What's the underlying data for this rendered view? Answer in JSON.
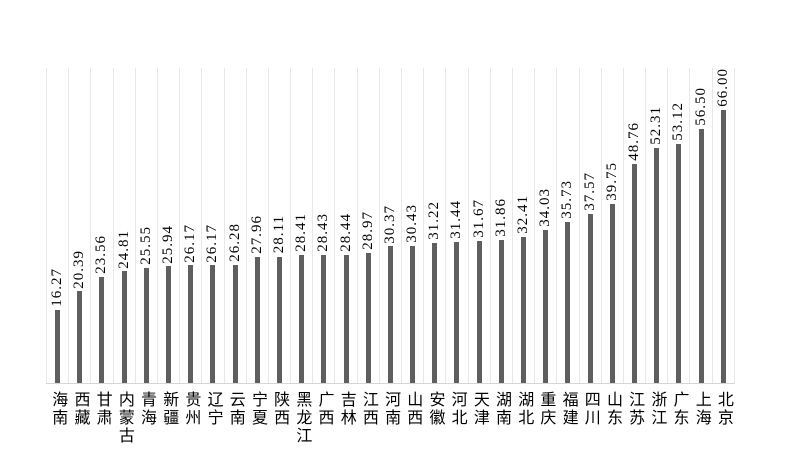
{
  "chart_data": {
    "type": "bar",
    "title": "",
    "xlabel": "",
    "ylabel": "",
    "ylim": [
      0,
      70
    ],
    "legend_position": "none",
    "grid": "vertical-category-gridlines-only",
    "orientation": "vertical",
    "bar_color": "#5f5f5f",
    "gridline_color": "#e8e8e8",
    "axis_line_color": "#d6d6d6",
    "label_color": "#000000",
    "value_label_rotation": "90-degrees-bottom-to-top",
    "category_label_orientation": "vertical-stacked-characters",
    "categories": [
      "海南",
      "西藏",
      "甘肃",
      "内蒙古",
      "青海",
      "新疆",
      "贵州",
      "辽宁",
      "云南",
      "宁夏",
      "陕西",
      "黑龙江",
      "广西",
      "吉林",
      "江西",
      "河南",
      "山西",
      "安徽",
      "河北",
      "天津",
      "湖南",
      "湖北",
      "重庆",
      "福建",
      "四川",
      "山东",
      "江苏",
      "浙江",
      "广东",
      "上海",
      "北京"
    ],
    "values": [
      16.27,
      20.39,
      23.56,
      24.81,
      25.55,
      25.94,
      26.17,
      26.17,
      26.28,
      27.96,
      28.11,
      28.41,
      28.43,
      28.44,
      28.97,
      30.37,
      30.43,
      31.22,
      31.44,
      31.67,
      31.86,
      32.41,
      34.03,
      35.73,
      37.57,
      39.75,
      48.76,
      52.31,
      53.12,
      56.5,
      66.0
    ],
    "value_labels": [
      "16.27",
      "20.39",
      "23.56",
      "24.81",
      "25.55",
      "25.94",
      "26.17",
      "26.17",
      "26.28",
      "27.96",
      "28.11",
      "28.41",
      "28.43",
      "28.44",
      "28.97",
      "30.37",
      "30.43",
      "31.22",
      "31.44",
      "31.67",
      "31.86",
      "32.41",
      "34.03",
      "35.73",
      "37.57",
      "39.75",
      "48.76",
      "52.31",
      "53.12",
      "56.50",
      "66.00"
    ]
  }
}
